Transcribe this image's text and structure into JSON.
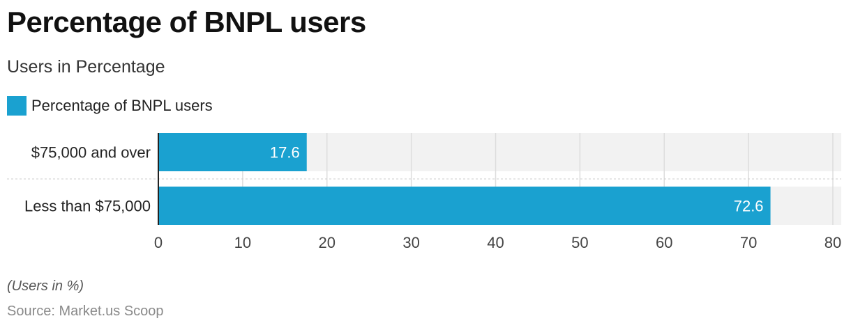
{
  "title": "Percentage of BNPL users",
  "subtitle": "Users in Percentage",
  "note": "(Users in %)",
  "source": "Source: Market.us Scoop",
  "colors": {
    "bar": "#1aa1d0",
    "track": "#f2f2f2",
    "grid": "#dddddd",
    "axis": "#222222"
  },
  "chart_data": {
    "type": "bar",
    "orientation": "horizontal",
    "categories": [
      "$75,000 and over",
      "Less than $75,000"
    ],
    "series": [
      {
        "name": "Percentage of BNPL users",
        "values": [
          17.6,
          72.6
        ]
      }
    ],
    "xlim": [
      0,
      80
    ],
    "xticks": [
      0,
      10,
      20,
      30,
      40,
      50,
      60,
      70,
      80
    ],
    "grid": true,
    "legend": "top-left",
    "data_labels": true
  }
}
